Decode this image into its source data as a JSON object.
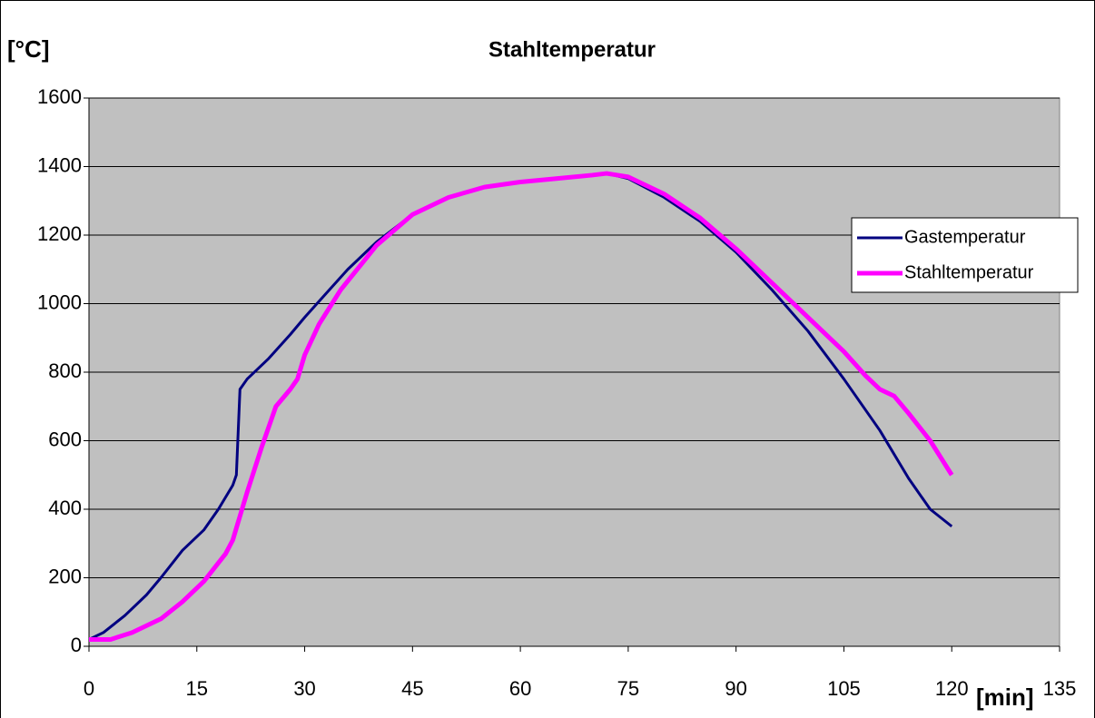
{
  "chart_data": {
    "type": "line",
    "title": "Stahltemperatur",
    "y_label": "[°C]",
    "x_label": "[min]",
    "xlim": [
      0,
      135
    ],
    "xticks": [
      0,
      15,
      30,
      45,
      60,
      75,
      90,
      105,
      120,
      135
    ],
    "ylim": [
      0,
      1600
    ],
    "yticks": [
      0,
      200,
      400,
      600,
      800,
      1000,
      1200,
      1400,
      1600
    ],
    "grid": true,
    "legend": "right",
    "series": [
      {
        "name": "Gastemperatur",
        "color": "#000080",
        "x": [
          0,
          2,
          5,
          8,
          10,
          13,
          16,
          18,
          20,
          20.5,
          21,
          22,
          25,
          28,
          30,
          33,
          36,
          40,
          45,
          50,
          55,
          60,
          65,
          70,
          72,
          75,
          80,
          85,
          90,
          95,
          100,
          105,
          110,
          114,
          117,
          120
        ],
        "values": [
          20,
          40,
          90,
          150,
          200,
          280,
          340,
          400,
          470,
          500,
          750,
          780,
          840,
          910,
          960,
          1030,
          1100,
          1180,
          1260,
          1310,
          1340,
          1355,
          1365,
          1375,
          1380,
          1365,
          1310,
          1240,
          1150,
          1040,
          920,
          780,
          630,
          490,
          400,
          350
        ]
      },
      {
        "name": "Stahltemperatur",
        "color": "#ff00ff",
        "x": [
          0,
          3,
          6,
          10,
          13,
          16,
          19,
          20,
          21,
          22,
          24,
          26,
          28,
          29,
          30,
          32,
          35,
          40,
          45,
          50,
          55,
          60,
          65,
          70,
          72,
          75,
          80,
          85,
          90,
          95,
          100,
          105,
          108,
          110,
          112,
          114,
          117,
          120
        ],
        "values": [
          20,
          20,
          40,
          80,
          130,
          190,
          270,
          310,
          380,
          450,
          580,
          700,
          750,
          780,
          850,
          940,
          1040,
          1170,
          1260,
          1310,
          1340,
          1355,
          1365,
          1375,
          1380,
          1370,
          1320,
          1250,
          1160,
          1060,
          960,
          860,
          790,
          750,
          730,
          680,
          600,
          500
        ]
      }
    ]
  }
}
